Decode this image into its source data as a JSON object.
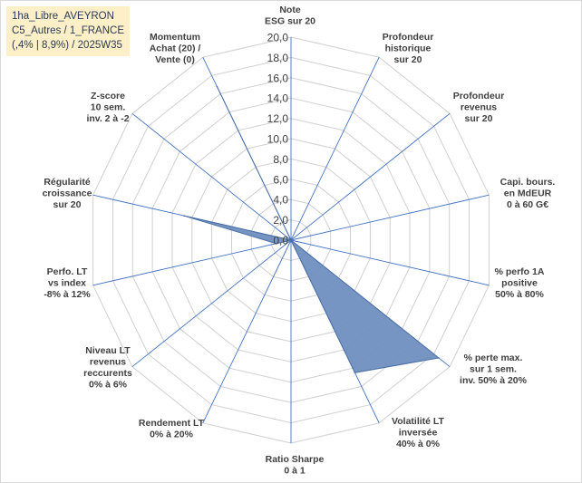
{
  "chart_data": {
    "type": "radar",
    "title": [
      "1ha_Libre_AVEYRON",
      "C5_Autres / 1_FRANCE",
      "(,4% | 8,9%) / 2025W35"
    ],
    "rmin": 0,
    "rmax": 20,
    "tick_step": 2,
    "tick_labels": [
      "0,0",
      "2,0",
      "4,0",
      "6,0",
      "8,0",
      "10,0",
      "12,0",
      "14,0",
      "16,0",
      "18,0",
      "20,0"
    ],
    "gridlines": true,
    "fill_color": "#6f8fbf",
    "line_color": "#4a6fa5",
    "grid_color": "#d0d0d0",
    "axis_color": "#4472c4",
    "categories": [
      [
        "Note",
        "ESG sur 20"
      ],
      [
        "Profondeur",
        "historique",
        "sur 20"
      ],
      [
        "Profondeur",
        "revenus",
        "sur 20"
      ],
      [
        "Capi. bours.",
        "en MdEUR",
        "0 à 60 G€"
      ],
      [
        "% perfo 1A",
        "positive",
        "50% à 80%"
      ],
      [
        "% perte max.",
        "sur 1 sem.",
        "inv. 50% à 20%"
      ],
      [
        "Volatilité LT",
        "inversée",
        "40% à 0%"
      ],
      [
        "Ratio Sharpe",
        "0 à 1"
      ],
      [
        "Rendement LT",
        "0% à 20%"
      ],
      [
        "Niveau LT",
        "revenus",
        "reccurents",
        "0% à 6%"
      ],
      [
        "Perfo. LT",
        "vs index",
        "-8% à 12%"
      ],
      [
        "Régularité",
        "croissance",
        "sur 20"
      ],
      [
        "Z-score",
        "10 sem.",
        "inv. 2 à -2"
      ],
      [
        "Momentum",
        "Achat (20) /",
        "Vente (0)"
      ]
    ],
    "values": [
      0,
      0,
      0,
      0,
      0,
      18.6,
      14.5,
      0,
      0,
      0,
      1.5,
      10.8,
      0,
      16.8
    ]
  }
}
